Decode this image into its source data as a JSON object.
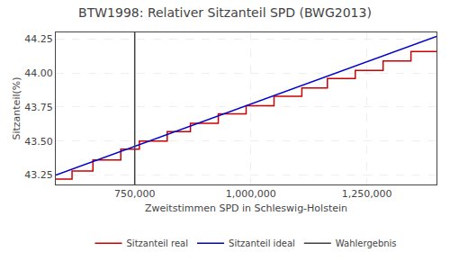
{
  "chart_data": {
    "type": "line",
    "title": "BTW1998: Relativer Sitzanteil SPD (BWG2013)",
    "x_label": "Zweitstimmen SPD in Schleswig-Holstein",
    "y_label": "Sitzanteil(%)",
    "xlim": [
      580000,
      1400000
    ],
    "ylim": [
      43.18,
      44.3
    ],
    "xticks": [
      {
        "value": 750000,
        "label": "750,000"
      },
      {
        "value": 1000000,
        "label": "1,000,000"
      },
      {
        "value": 1250000,
        "label": "1,250,000"
      }
    ],
    "yticks": [
      43.25,
      {
        "value": 43.5,
        "label": "43.50"
      },
      43.75,
      {
        "value": 44,
        "label": "44.00"
      },
      44.25
    ],
    "grid": true,
    "legend": "bottom",
    "series": [
      {
        "name": "Sitzanteil real",
        "color": "#cc0000",
        "type": "line",
        "x": [
          580000,
          615000,
          615000,
          660000,
          660000,
          720000,
          720000,
          760000,
          760000,
          820000,
          820000,
          870000,
          870000,
          930000,
          930000,
          990000,
          990000,
          1050000,
          1050000,
          1110000,
          1110000,
          1165000,
          1165000,
          1225000,
          1225000,
          1285000,
          1285000,
          1345000,
          1345000,
          1400000
        ],
        "values": [
          43.22,
          43.22,
          43.28,
          43.28,
          43.36,
          43.36,
          43.44,
          43.44,
          43.5,
          43.5,
          43.57,
          43.57,
          43.63,
          43.63,
          43.7,
          43.7,
          43.76,
          43.76,
          43.83,
          43.83,
          43.89,
          43.89,
          43.96,
          43.96,
          44.02,
          44.02,
          44.09,
          44.09,
          44.16,
          44.16
        ]
      },
      {
        "name": "Sitzanteil ideal",
        "color": "#0000cc",
        "type": "line",
        "x": [
          580000,
          1400000
        ],
        "values": [
          43.25,
          44.27
        ]
      },
      {
        "name": "Wahlergebnis",
        "color": "#404040",
        "type": "vline",
        "x": [
          750000
        ]
      }
    ]
  }
}
